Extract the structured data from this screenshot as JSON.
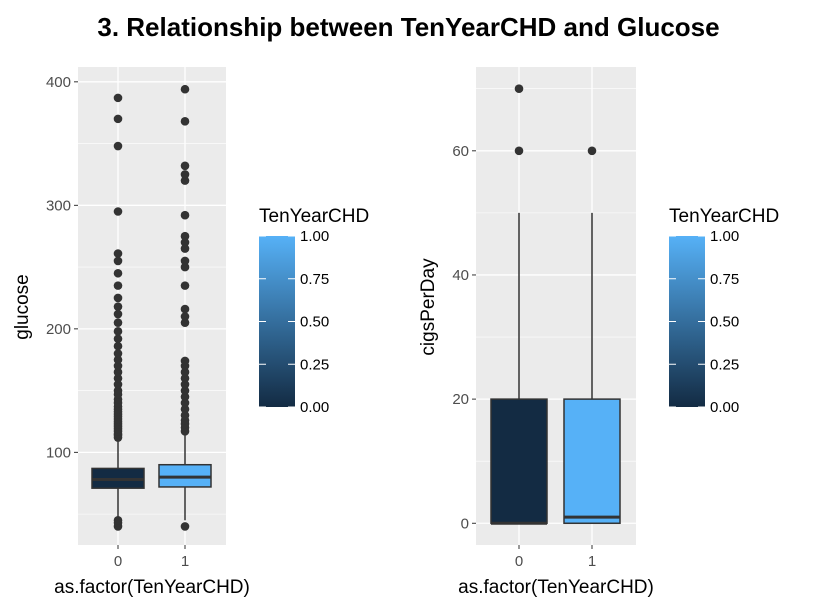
{
  "title": "3. Relationship between TenYearCHD and Glucose",
  "colors": {
    "panel_bg": "#ebebeb",
    "grid_major": "#ffffff",
    "box_outline": "#333333",
    "low": "#132b43",
    "high": "#56b1f7"
  },
  "chart_data": [
    {
      "type": "boxplot",
      "xlabel": "as.factor(TenYearCHD)",
      "ylabel": "glucose",
      "categories": [
        "0",
        "1"
      ],
      "fill_values": [
        0,
        1
      ],
      "ylim": [
        25,
        412
      ],
      "yticks": [
        100,
        200,
        300,
        400
      ],
      "grid": true,
      "boxes": [
        {
          "category": "0",
          "lower_whisker": 40,
          "q1": 71,
          "median": 78,
          "q3": 87,
          "upper_whisker": 111,
          "outliers": [
            40,
            43,
            45,
            112,
            114,
            115,
            117,
            119,
            121,
            123,
            125,
            127,
            129,
            131,
            133,
            135,
            137,
            140,
            143,
            147,
            150,
            155,
            160,
            165,
            170,
            175,
            180,
            186,
            192,
            198,
            205,
            212,
            218,
            225,
            235,
            245,
            255,
            261,
            295,
            348,
            370,
            387
          ]
        },
        {
          "category": "1",
          "lower_whisker": 45,
          "q1": 72,
          "median": 80,
          "q3": 90,
          "upper_whisker": 114,
          "outliers": [
            40,
            117,
            120,
            123,
            126,
            130,
            135,
            140,
            145,
            150,
            155,
            160,
            165,
            170,
            174,
            205,
            210,
            216,
            235,
            250,
            255,
            265,
            270,
            275,
            292,
            320,
            325,
            332,
            368,
            394
          ]
        }
      ],
      "legend": {
        "title": "TenYearCHD",
        "labels": [
          "1.00",
          "0.75",
          "0.50",
          "0.25",
          "0.00"
        ],
        "placement": "right"
      }
    },
    {
      "type": "boxplot",
      "xlabel": "as.factor(TenYearCHD)",
      "ylabel": "cigsPerDay",
      "categories": [
        "0",
        "1"
      ],
      "fill_values": [
        0,
        1
      ],
      "ylim": [
        -3.5,
        73.5
      ],
      "yticks": [
        0,
        20,
        40,
        60
      ],
      "grid": true,
      "boxes": [
        {
          "category": "0",
          "lower_whisker": 0,
          "q1": 0,
          "median": 0,
          "q3": 20,
          "upper_whisker": 50,
          "outliers": [
            60,
            70
          ]
        },
        {
          "category": "1",
          "lower_whisker": 0,
          "q1": 0,
          "median": 1,
          "q3": 20,
          "upper_whisker": 50,
          "outliers": [
            60
          ]
        }
      ],
      "legend": {
        "title": "TenYearCHD",
        "labels": [
          "1.00",
          "0.75",
          "0.50",
          "0.25",
          "0.00"
        ],
        "placement": "right"
      }
    }
  ]
}
